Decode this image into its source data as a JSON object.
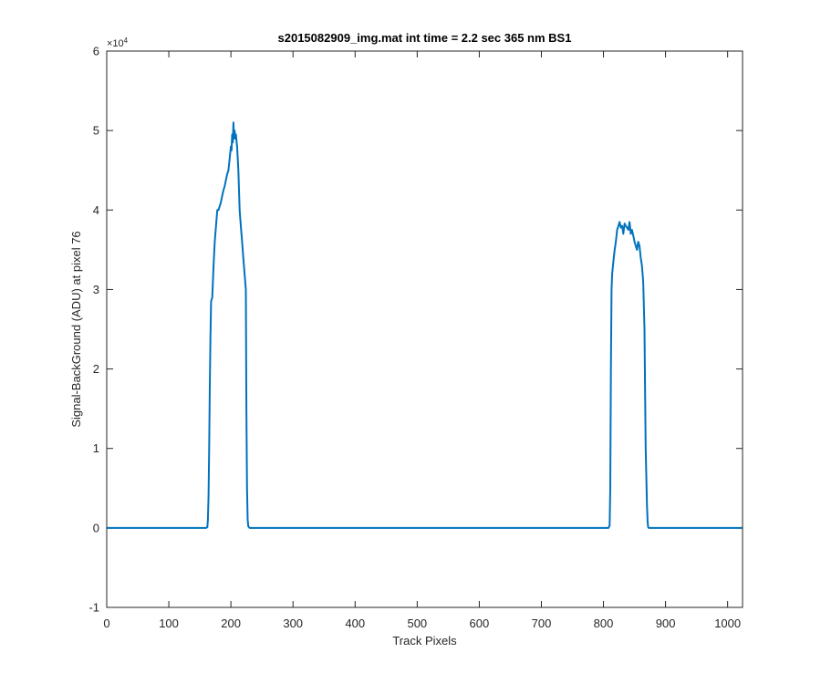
{
  "chart_data": {
    "type": "line",
    "title": "s2015082909_img.mat int time = 2.2 sec  365 nm BS1",
    "xlabel": "Track Pixels",
    "ylabel": "Signal-BackGround (ADU) at pixel 76",
    "xlim": [
      0,
      1024
    ],
    "ylim": [
      -10000,
      60000
    ],
    "x_ticks": [
      0,
      100,
      200,
      300,
      400,
      500,
      600,
      700,
      800,
      900,
      1000
    ],
    "x_tick_labels": [
      "0",
      "100",
      "200",
      "300",
      "400",
      "500",
      "600",
      "700",
      "800",
      "900",
      "1000"
    ],
    "y_ticks": [
      -10000,
      0,
      10000,
      20000,
      30000,
      40000,
      50000,
      60000
    ],
    "y_tick_labels": [
      "-1",
      "0",
      "1",
      "2",
      "3",
      "4",
      "5",
      "6"
    ],
    "y_exponent_label": "×10",
    "y_exponent_power": "4",
    "grid": false,
    "line_color": "#0072BD",
    "series": [
      {
        "x": [
          0,
          160,
          162,
          163,
          164,
          165,
          166,
          167,
          168,
          170,
          172,
          174,
          176,
          178,
          180,
          182,
          184,
          186,
          188,
          190,
          192,
          194,
          196,
          198,
          200,
          201,
          202,
          203,
          204,
          205,
          206,
          207,
          208,
          210,
          212,
          214,
          216,
          218,
          220,
          222,
          224,
          225,
          226,
          227,
          228,
          230,
          400,
          600,
          808,
          810,
          811,
          812,
          813,
          814,
          816,
          818,
          820,
          822,
          824,
          826,
          828,
          830,
          832,
          834,
          836,
          838,
          840,
          842,
          844,
          846,
          848,
          850,
          852,
          854,
          856,
          858,
          860,
          862,
          864,
          866,
          868,
          870,
          871,
          872,
          873,
          874,
          876,
          878,
          1024
        ],
        "y": [
          0,
          0,
          100,
          1000,
          4000,
          10000,
          18000,
          24000,
          28500,
          29000,
          33000,
          36000,
          38000,
          40000,
          40000,
          40500,
          41000,
          41800,
          42500,
          43000,
          43800,
          44500,
          45000,
          46500,
          48000,
          47500,
          49500,
          48500,
          51000,
          49000,
          50000,
          49000,
          49500,
          48000,
          45000,
          40000,
          38000,
          36000,
          34000,
          32000,
          30000,
          15000,
          5000,
          1000,
          200,
          0,
          0,
          0,
          0,
          300,
          5000,
          20000,
          30000,
          32000,
          33500,
          35000,
          36000,
          37500,
          38000,
          38500,
          37800,
          38000,
          37000,
          38300,
          38000,
          37800,
          37500,
          38500,
          37000,
          37500,
          36800,
          36000,
          35500,
          35000,
          36000,
          35500,
          34000,
          33000,
          31000,
          25000,
          10000,
          3000,
          800,
          100,
          0,
          0,
          0,
          0,
          0
        ]
      }
    ]
  }
}
